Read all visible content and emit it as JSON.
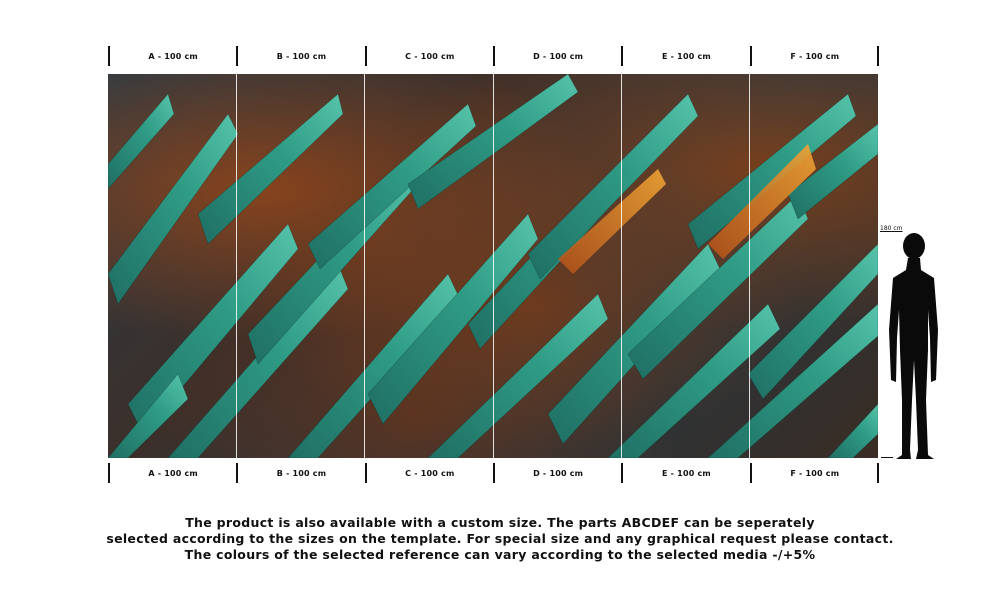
{
  "panels": [
    "A - 100 cm",
    "B - 100 cm",
    "C - 100 cm",
    "D - 100 cm",
    "E - 100 cm",
    "F - 100 cm"
  ],
  "height_label": "180 cm",
  "description_lines": [
    "The product is also available with a custom size. The parts ABCDEF can be seperately",
    "selected according to the sizes on the template. For special size and any graphical request please contact.",
    "The colours of the selected reference can vary according to the selected media -/+5%"
  ],
  "colors": {
    "teal": "#2f9c86",
    "teal_light": "#4fbfa6",
    "rust": "#8a4a1f",
    "orange_glow": "#e07d1e"
  }
}
